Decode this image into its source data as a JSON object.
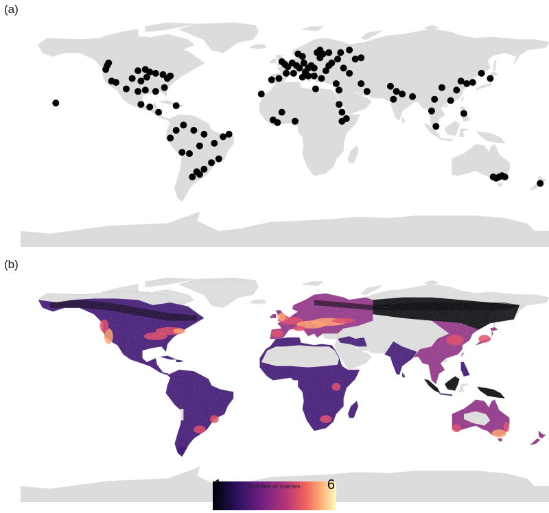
{
  "panels": {
    "a": {
      "label": "(a)"
    },
    "b": {
      "label": "(b)"
    }
  },
  "colors": {
    "land": "#dcdcdc",
    "point": "#000000",
    "colormap": [
      "#000004",
      "#3b0f70",
      "#8c2981",
      "#de4968",
      "#fe9f6d",
      "#fcfdbf"
    ]
  },
  "occurrence_points": [
    [
      -156,
      21
    ],
    [
      -122,
      47
    ],
    [
      -120,
      52
    ],
    [
      -121,
      50
    ],
    [
      -118,
      38
    ],
    [
      -115,
      37
    ],
    [
      -104,
      40
    ],
    [
      -100,
      46
    ],
    [
      -95,
      47
    ],
    [
      -92,
      45
    ],
    [
      -88,
      44
    ],
    [
      -83,
      43
    ],
    [
      -80,
      40
    ],
    [
      -78,
      42
    ],
    [
      -94,
      41
    ],
    [
      -98,
      38
    ],
    [
      -88,
      30
    ],
    [
      -82,
      33
    ],
    [
      -108,
      32
    ],
    [
      -100,
      30
    ],
    [
      -95,
      31
    ],
    [
      -98,
      20
    ],
    [
      -92,
      18
    ],
    [
      -86,
      14
    ],
    [
      -74,
      19
    ],
    [
      -69,
      4
    ],
    [
      -74,
      0
    ],
    [
      -78,
      -6
    ],
    [
      -62,
      0
    ],
    [
      -55,
      -3
    ],
    [
      -42,
      -5
    ],
    [
      -38,
      -3
    ],
    [
      -58,
      -12
    ],
    [
      -48,
      -10
    ],
    [
      -45,
      -22
    ],
    [
      -50,
      -25
    ],
    [
      -65,
      -18
    ],
    [
      -70,
      -17
    ],
    [
      -63,
      -36
    ],
    [
      -58,
      -34
    ],
    [
      -55,
      -30
    ],
    [
      -60,
      -32
    ],
    [
      -16,
      28
    ],
    [
      -4,
      40
    ],
    [
      -9,
      39
    ],
    [
      0,
      51
    ],
    [
      2,
      49
    ],
    [
      -2,
      53
    ],
    [
      5,
      52
    ],
    [
      8,
      50
    ],
    [
      10,
      48
    ],
    [
      13,
      52
    ],
    [
      14,
      45
    ],
    [
      16,
      48
    ],
    [
      18,
      50
    ],
    [
      20,
      48
    ],
    [
      24,
      56
    ],
    [
      22,
      60
    ],
    [
      24,
      62
    ],
    [
      26,
      59
    ],
    [
      28,
      46
    ],
    [
      30,
      50
    ],
    [
      32,
      52
    ],
    [
      36,
      55
    ],
    [
      38,
      60
    ],
    [
      44,
      62
    ],
    [
      48,
      55
    ],
    [
      52,
      56
    ],
    [
      12,
      41
    ],
    [
      16,
      42
    ],
    [
      25,
      40
    ],
    [
      20,
      42
    ],
    [
      6,
      44
    ],
    [
      1,
      44
    ],
    [
      12,
      57
    ],
    [
      9,
      59
    ],
    [
      30,
      60
    ],
    [
      40,
      48
    ],
    [
      44,
      44
    ],
    [
      35,
      36
    ],
    [
      37,
      31
    ],
    [
      21,
      32
    ],
    [
      37,
      20
    ],
    [
      39,
      14
    ],
    [
      42,
      9
    ],
    [
      39,
      7
    ],
    [
      -2,
      14
    ],
    [
      7,
      7
    ],
    [
      -5,
      6
    ],
    [
      -8,
      8
    ],
    [
      56,
      30
    ],
    [
      52,
      36
    ],
    [
      72,
      34
    ],
    [
      76,
      30
    ],
    [
      74,
      24
    ],
    [
      80,
      28
    ],
    [
      87,
      26
    ],
    [
      102,
      24
    ],
    [
      107,
      33
    ],
    [
      113,
      23
    ],
    [
      117,
      31
    ],
    [
      120,
      38
    ],
    [
      124,
      36
    ],
    [
      128,
      37
    ],
    [
      134,
      44
    ],
    [
      140,
      40
    ],
    [
      100,
      15
    ],
    [
      103,
      3
    ],
    [
      122,
      13
    ],
    [
      142,
      -36
    ],
    [
      144,
      -37
    ],
    [
      146,
      -36
    ],
    [
      148,
      -35
    ],
    [
      150,
      -36
    ],
    [
      174,
      -41
    ]
  ]
}
